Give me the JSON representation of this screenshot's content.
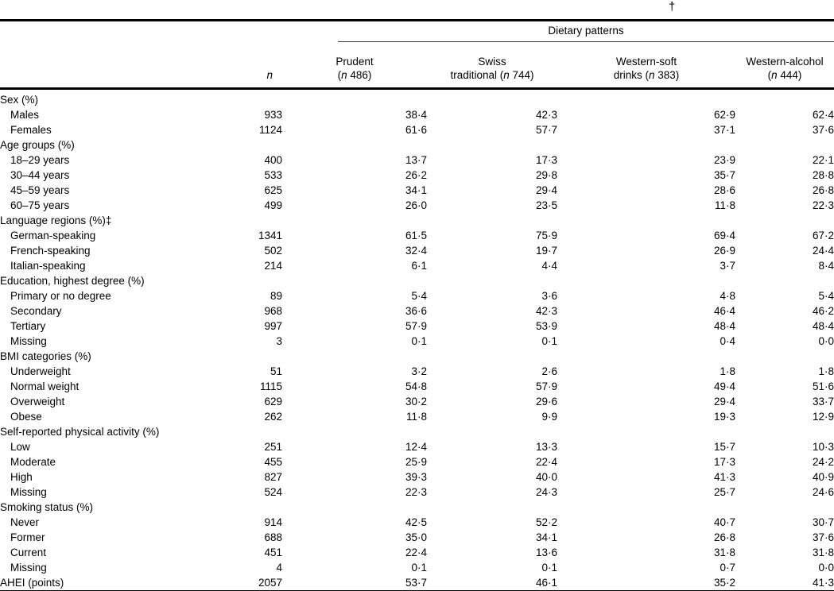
{
  "page": {
    "dagger": "†"
  },
  "table": {
    "spanner": "Dietary patterns",
    "n_header": "n",
    "patterns": [
      {
        "line1": "Prudent",
        "pre": "(",
        "nvar": "n",
        "post": " 486)"
      },
      {
        "line1": "Swiss",
        "pre": "traditional (",
        "nvar": "n",
        "post": " 744)"
      },
      {
        "line1": "Western-soft",
        "pre": "drinks (",
        "nvar": "n",
        "post": " 383)"
      },
      {
        "line1": "Western-alcohol",
        "pre": "(",
        "nvar": "n",
        "post": " 444)"
      }
    ],
    "rows": [
      {
        "label": "Sex (%)",
        "section": true
      },
      {
        "label": "Males",
        "indent": true,
        "n": "933",
        "values": [
          "38·4",
          "42·3",
          "62·9",
          "62·4"
        ]
      },
      {
        "label": "Females",
        "indent": true,
        "n": "1124",
        "values": [
          "61·6",
          "57·7",
          "37·1",
          "37·6"
        ]
      },
      {
        "label": "Age groups (%)",
        "section": true
      },
      {
        "label": "18–29 years",
        "indent": true,
        "n": "400",
        "values": [
          "13·7",
          "17·3",
          "23·9",
          "22·1"
        ]
      },
      {
        "label": "30–44 years",
        "indent": true,
        "n": "533",
        "values": [
          "26·2",
          "29·8",
          "35·7",
          "28·8"
        ]
      },
      {
        "label": "45–59 years",
        "indent": true,
        "n": "625",
        "values": [
          "34·1",
          "29·4",
          "28·6",
          "26·8"
        ]
      },
      {
        "label": "60–75 years",
        "indent": true,
        "n": "499",
        "values": [
          "26·0",
          "23·5",
          "11·8",
          "22·3"
        ]
      },
      {
        "label": "Language regions (%)‡",
        "section": true
      },
      {
        "label": "German-speaking",
        "indent": true,
        "n": "1341",
        "values": [
          "61·5",
          "75·9",
          "69·4",
          "67·2"
        ]
      },
      {
        "label": "French-speaking",
        "indent": true,
        "n": "502",
        "values": [
          "32·4",
          "19·7",
          "26·9",
          "24·4"
        ]
      },
      {
        "label": "Italian-speaking",
        "indent": true,
        "n": "214",
        "values": [
          "6·1",
          "4·4",
          "3·7",
          "8·4"
        ]
      },
      {
        "label": "Education, highest degree (%)",
        "section": true
      },
      {
        "label": "Primary or no degree",
        "indent": true,
        "n": "89",
        "values": [
          "5·4",
          "3·6",
          "4·8",
          "5·4"
        ]
      },
      {
        "label": "Secondary",
        "indent": true,
        "n": "968",
        "values": [
          "36·6",
          "42·3",
          "46·4",
          "46·2"
        ]
      },
      {
        "label": "Tertiary",
        "indent": true,
        "n": "997",
        "values": [
          "57·9",
          "53·9",
          "48·4",
          "48·4"
        ]
      },
      {
        "label": "Missing",
        "indent": true,
        "n": "3",
        "values": [
          "0·1",
          "0·1",
          "0·4",
          "0·0"
        ]
      },
      {
        "label": "BMI categories (%)",
        "section": true
      },
      {
        "label": "Underweight",
        "indent": true,
        "n": "51",
        "values": [
          "3·2",
          "2·6",
          "1·8",
          "1·8"
        ]
      },
      {
        "label": "Normal weight",
        "indent": true,
        "n": "1115",
        "values": [
          "54·8",
          "57·9",
          "49·4",
          "51·6"
        ]
      },
      {
        "label": "Overweight",
        "indent": true,
        "n": "629",
        "values": [
          "30·2",
          "29·6",
          "29·4",
          "33·7"
        ]
      },
      {
        "label": "Obese",
        "indent": true,
        "n": "262",
        "values": [
          "11·8",
          "9·9",
          "19·3",
          "12·9"
        ]
      },
      {
        "label": "Self-reported physical activity (%)",
        "section": true
      },
      {
        "label": "Low",
        "indent": true,
        "n": "251",
        "values": [
          "12·4",
          "13·3",
          "15·7",
          "10·3"
        ]
      },
      {
        "label": "Moderate",
        "indent": true,
        "n": "455",
        "values": [
          "25·9",
          "22·4",
          "17·3",
          "24·2"
        ]
      },
      {
        "label": "High",
        "indent": true,
        "n": "827",
        "values": [
          "39·3",
          "40·0",
          "41·3",
          "40·9"
        ]
      },
      {
        "label": "Missing",
        "indent": true,
        "n": "524",
        "values": [
          "22·3",
          "24·3",
          "25·7",
          "24·6"
        ]
      },
      {
        "label": "Smoking status (%)",
        "section": true
      },
      {
        "label": "Never",
        "indent": true,
        "n": "914",
        "values": [
          "42·5",
          "52·2",
          "40·7",
          "30·7"
        ]
      },
      {
        "label": "Former",
        "indent": true,
        "n": "688",
        "values": [
          "35·0",
          "34·1",
          "26·8",
          "37·6"
        ]
      },
      {
        "label": "Current",
        "indent": true,
        "n": "451",
        "values": [
          "22·4",
          "13·6",
          "31·8",
          "31·8"
        ]
      },
      {
        "label": "Missing",
        "indent": true,
        "n": "4",
        "values": [
          "0·1",
          "0·1",
          "0·7",
          "0·0"
        ]
      },
      {
        "label": "AHEI (points)",
        "indent": false,
        "n": "2057",
        "values": [
          "53·7",
          "46·1",
          "35·2",
          "41·3"
        ]
      }
    ]
  }
}
